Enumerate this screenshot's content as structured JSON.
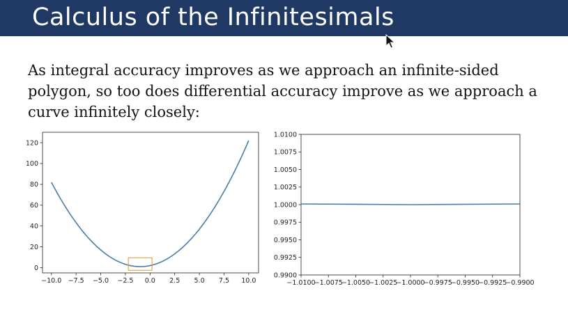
{
  "slide": {
    "title": "Calculus of the Infinitesimals",
    "body_text": "As integral accuracy improves as we approach an infinite-sided polygon, so too does differential accuracy improve as we approach a curve infinitely closely:",
    "accent_color": "#1f3864"
  },
  "chart_data": [
    {
      "type": "line",
      "function": "x^2 + 2x + 2",
      "x": [
        -10,
        -9,
        -8,
        -7,
        -6,
        -5,
        -4,
        -3,
        -2,
        -1,
        0,
        1,
        2,
        3,
        4,
        5,
        6,
        7,
        8,
        9,
        10
      ],
      "y": [
        82,
        65,
        50,
        37,
        26,
        17,
        10,
        5,
        2,
        1,
        2,
        5,
        10,
        17,
        26,
        37,
        50,
        65,
        82,
        101,
        122
      ],
      "xlim": [
        -10.9,
        11
      ],
      "ylim": [
        -5,
        130
      ],
      "xticks": [
        -10,
        -7.5,
        -5,
        -2.5,
        0,
        2.5,
        5,
        7.5,
        10
      ],
      "xtick_labels": [
        "−10.0",
        "−7.5",
        "−5.0",
        "−2.5",
        "0.0",
        "2.5",
        "5.0",
        "7.5",
        "10.0"
      ],
      "yticks": [
        0,
        20,
        40,
        60,
        80,
        100,
        120
      ],
      "ytick_labels": [
        "0",
        "20",
        "40",
        "60",
        "80",
        "100",
        "120"
      ],
      "line_color": "#4c7ba8",
      "highlight_rect": {
        "x0": -2.2,
        "x1": 0.2,
        "y0": -2.5,
        "y1": 9.5,
        "color": "#e8912d"
      }
    },
    {
      "type": "line",
      "x": [
        -1.01,
        -1.0,
        -0.99
      ],
      "y": [
        1.0001,
        1.0,
        1.0001
      ],
      "xlim": [
        -1.01,
        -0.99
      ],
      "ylim": [
        0.99,
        1.01
      ],
      "xticks": [
        -1.01,
        -1.0075,
        -1.005,
        -1.0025,
        -1.0,
        -0.9975,
        -0.995,
        -0.9925,
        -0.99
      ],
      "xtick_labels": [
        "−1.0100",
        "−1.0075",
        "−1.0050",
        "−1.0025",
        "−1.0000",
        "−0.9975",
        "−0.9950",
        "−0.9925",
        "−0.9900"
      ],
      "yticks": [
        0.99,
        0.9925,
        0.995,
        0.9975,
        1.0,
        1.0025,
        1.005,
        1.0075,
        1.01
      ],
      "ytick_labels": [
        "0.9900",
        "0.9925",
        "0.9950",
        "0.9975",
        "1.0000",
        "1.0025",
        "1.0050",
        "1.0075",
        "1.0100"
      ],
      "line_color": "#4c7ba8"
    }
  ]
}
